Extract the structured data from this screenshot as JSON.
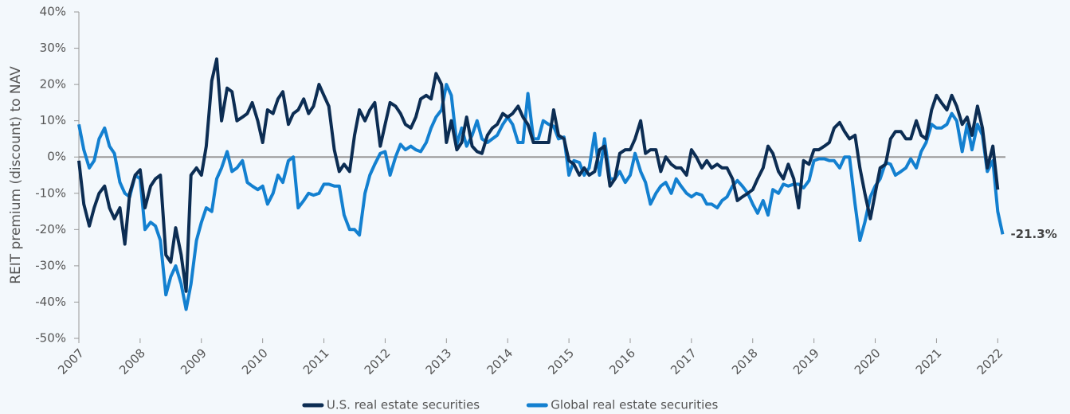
{
  "chart_data": {
    "type": "line",
    "y_label": "REIT premium (discount) to NAV",
    "annotation": "-21.3%",
    "legend": "bottom",
    "zero_line": true,
    "xlim": [
      2007,
      2022.1
    ],
    "xticks": [
      2007,
      2008,
      2009,
      2010,
      2011,
      2012,
      2013,
      2014,
      2015,
      2016,
      2017,
      2018,
      2019,
      2020,
      2021,
      2022
    ],
    "ylim": [
      -50,
      40
    ],
    "yticks": [
      {
        "value": 40,
        "label": "40%"
      },
      {
        "value": 30,
        "label": "30%"
      },
      {
        "value": 20,
        "label": "20%"
      },
      {
        "value": 10,
        "label": "10%"
      },
      {
        "value": 0,
        "label": "0%"
      },
      {
        "value": -10,
        "label": "-10%"
      },
      {
        "value": -20,
        "label": "-20%"
      },
      {
        "value": -30,
        "label": "-30%"
      },
      {
        "value": -40,
        "label": "-40%"
      },
      {
        "value": -50,
        "label": "-50%"
      }
    ],
    "x": [
      2007,
      2007.08,
      2007.17,
      2007.25,
      2007.33,
      2007.42,
      2007.5,
      2007.58,
      2007.67,
      2007.75,
      2007.83,
      2007.92,
      2008,
      2008.08,
      2008.17,
      2008.25,
      2008.33,
      2008.42,
      2008.5,
      2008.58,
      2008.67,
      2008.75,
      2008.83,
      2008.92,
      2009,
      2009.08,
      2009.17,
      2009.25,
      2009.33,
      2009.42,
      2009.5,
      2009.58,
      2009.67,
      2009.75,
      2009.83,
      2009.92,
      2010,
      2010.08,
      2010.17,
      2010.25,
      2010.33,
      2010.42,
      2010.5,
      2010.58,
      2010.67,
      2010.75,
      2010.83,
      2010.92,
      2011,
      2011.08,
      2011.17,
      2011.25,
      2011.33,
      2011.42,
      2011.5,
      2011.58,
      2011.67,
      2011.75,
      2011.83,
      2011.92,
      2012,
      2012.08,
      2012.17,
      2012.25,
      2012.33,
      2012.42,
      2012.5,
      2012.58,
      2012.67,
      2012.75,
      2012.83,
      2012.92,
      2013,
      2013.08,
      2013.17,
      2013.25,
      2013.33,
      2013.42,
      2013.5,
      2013.58,
      2013.67,
      2013.75,
      2013.83,
      2013.92,
      2014,
      2014.08,
      2014.17,
      2014.25,
      2014.33,
      2014.42,
      2014.5,
      2014.58,
      2014.67,
      2014.75,
      2014.83,
      2014.92,
      2015,
      2015.08,
      2015.17,
      2015.25,
      2015.33,
      2015.42,
      2015.5,
      2015.58,
      2015.67,
      2015.75,
      2015.83,
      2015.92,
      2016,
      2016.08,
      2016.17,
      2016.25,
      2016.33,
      2016.42,
      2016.5,
      2016.58,
      2016.67,
      2016.75,
      2016.83,
      2016.92,
      2017,
      2017.08,
      2017.17,
      2017.25,
      2017.33,
      2017.42,
      2017.5,
      2017.58,
      2017.67,
      2017.75,
      2017.83,
      2017.92,
      2018,
      2018.08,
      2018.17,
      2018.25,
      2018.33,
      2018.42,
      2018.5,
      2018.58,
      2018.67,
      2018.75,
      2018.83,
      2018.92,
      2019,
      2019.08,
      2019.17,
      2019.25,
      2019.33,
      2019.42,
      2019.5,
      2019.58,
      2019.67,
      2019.75,
      2019.83,
      2019.92,
      2020,
      2020.08,
      2020.17,
      2020.25,
      2020.33,
      2020.42,
      2020.5,
      2020.58,
      2020.67,
      2020.75,
      2020.83,
      2020.92,
      2021,
      2021.08,
      2021.17,
      2021.25,
      2021.33,
      2021.42,
      2021.5,
      2021.58,
      2021.67,
      2021.75,
      2021.83,
      2021.92,
      2022,
      2022.08
    ],
    "series": [
      {
        "name": "U.S. real estate securities",
        "color": "#0c2d53",
        "values": [
          -1,
          -13,
          -19,
          -14,
          -10,
          -8,
          -14,
          -17,
          -14,
          -24,
          -10,
          -5,
          -3.5,
          -14,
          -8,
          -6,
          -5,
          -27,
          -29,
          -19.5,
          -27,
          -37,
          -5,
          -3,
          -5,
          3,
          21,
          27,
          10,
          19,
          18,
          10,
          11,
          12,
          15,
          10,
          4,
          13,
          12,
          16,
          18,
          9,
          12,
          13,
          16,
          12,
          14,
          20,
          17,
          14,
          2,
          -4,
          -2,
          -4,
          6,
          13,
          10,
          13,
          15,
          3,
          9,
          15,
          14,
          12,
          9,
          8,
          11,
          16,
          17,
          16,
          23,
          20,
          4,
          10,
          2,
          4,
          11,
          3,
          1.5,
          1,
          6,
          8,
          9,
          12,
          11,
          12,
          14,
          11,
          9,
          4,
          4,
          4,
          4,
          13,
          6,
          5,
          -1,
          -2,
          -5,
          -3,
          -5,
          -4,
          2,
          3,
          -8,
          -6,
          1,
          2,
          2,
          5,
          10,
          1,
          2,
          2,
          -4,
          0,
          -2,
          -3,
          -3,
          -5,
          2,
          0,
          -3,
          -1,
          -3,
          -2,
          -3,
          -3,
          -6,
          -12,
          -11,
          -10,
          -9,
          -6,
          -3,
          3,
          1,
          -4,
          -6,
          -2,
          -6,
          -14,
          -1,
          -2,
          2,
          2,
          3,
          4,
          8,
          9.5,
          7,
          5,
          6,
          -3,
          -10,
          -17,
          -10,
          -3,
          -2,
          5,
          7,
          7,
          5,
          5,
          10,
          6,
          5,
          13,
          17,
          15,
          13,
          17,
          14,
          9,
          11,
          6,
          14,
          8,
          -3,
          3,
          -9,
          null
        ]
      },
      {
        "name": "Global real estate securities",
        "color": "#1380d0",
        "values": [
          9,
          2,
          -3,
          -1,
          5,
          8,
          3,
          1,
          -7,
          -10,
          -11,
          -5,
          -6,
          -20,
          -18,
          -19,
          -23,
          -38,
          -33,
          -30,
          -35,
          -42,
          -35,
          -23,
          -18,
          -14,
          -15,
          -6,
          -3,
          1.5,
          -4,
          -3,
          -1,
          -7,
          -8,
          -9,
          -8,
          -13,
          -10,
          -5,
          -7,
          -1,
          0,
          -14,
          -12,
          -10,
          -10.5,
          -10,
          -7.5,
          -7.5,
          -8,
          -8,
          -16,
          -20,
          -20,
          -21.5,
          -10,
          -5,
          -2,
          1,
          1.5,
          -5,
          0,
          3.5,
          2,
          3,
          2,
          1.5,
          4,
          8,
          11,
          13,
          20,
          17,
          3.5,
          8,
          3,
          6,
          10,
          5,
          4,
          5,
          6,
          9,
          11,
          9,
          4,
          4,
          17.5,
          5,
          5,
          10,
          9,
          8.5,
          5,
          5.5,
          -5,
          -1,
          -1.5,
          -5,
          -3,
          6.5,
          -5,
          5,
          -6,
          -6,
          -4,
          -7,
          -5,
          1,
          -4,
          -7,
          -13,
          -10,
          -8,
          -7,
          -10,
          -6,
          -8,
          -10,
          -11,
          -10,
          -10.5,
          -13,
          -13,
          -14,
          -12,
          -11,
          -8,
          -6.5,
          -8,
          -10,
          -13,
          -15.5,
          -12,
          -16,
          -9,
          -10,
          -7.5,
          -8,
          -7.5,
          -7.5,
          -8.5,
          -6.5,
          -1,
          -0.5,
          -0.5,
          -1,
          -1,
          -3,
          0,
          0,
          -13,
          -23,
          -18,
          -11,
          -8,
          -6,
          -1.5,
          -2,
          -5,
          -4,
          -3,
          -0.5,
          -3,
          1.5,
          4,
          9,
          8,
          8,
          9,
          12,
          10,
          1.5,
          9,
          2,
          9,
          6,
          -4,
          -1,
          -15,
          -21.3
        ]
      }
    ]
  }
}
